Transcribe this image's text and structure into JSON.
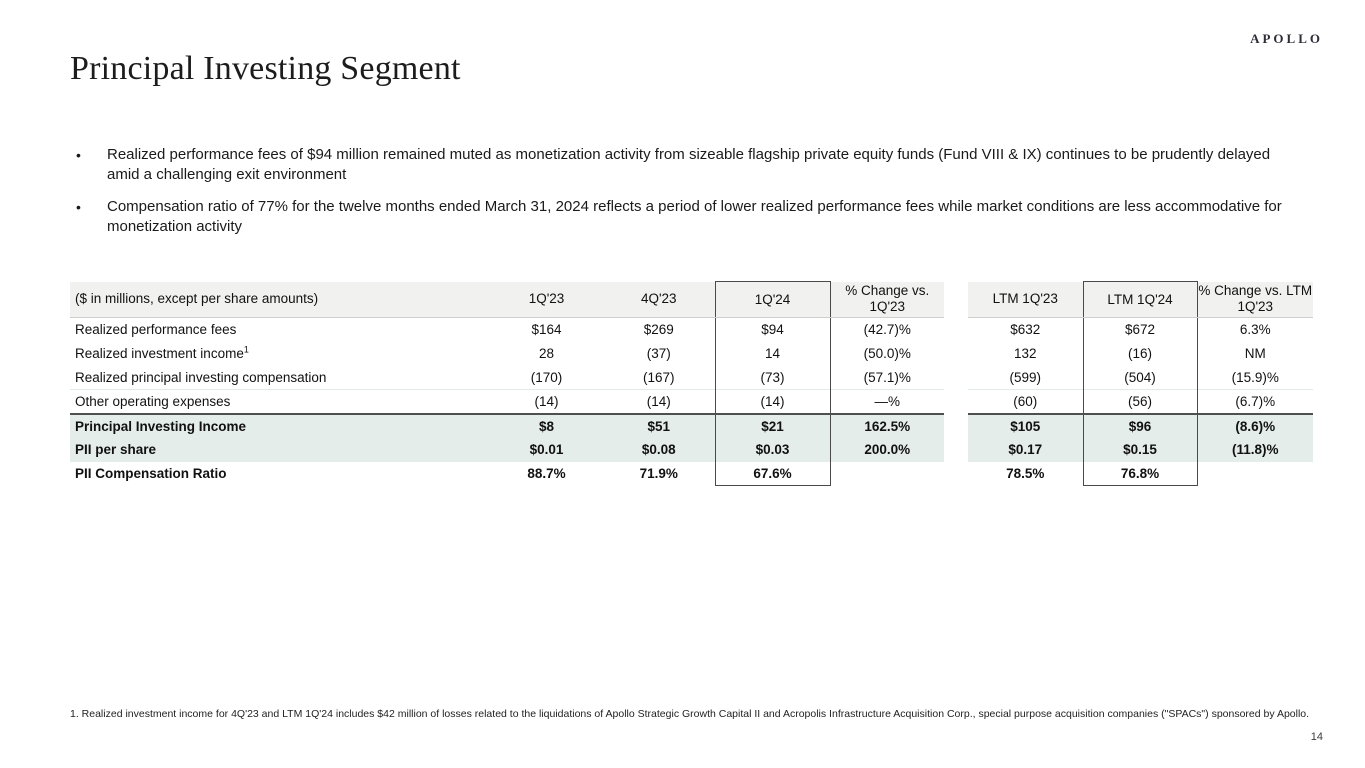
{
  "logo": "APOLLO",
  "title": "Principal Investing Segment",
  "bullets": [
    "Realized performance fees of $94 million remained muted as monetization activity from sizeable flagship private equity funds (Fund VIII & IX) continues to be prudently delayed amid a challenging exit environment",
    "Compensation ratio of 77% for the twelve months ended March 31, 2024 reflects a period of lower realized performance fees while market conditions are less accommodative for monetization activity"
  ],
  "bullet_marker": "•",
  "table": {
    "label_header": "($ in millions, except per share amounts)",
    "col_headers": [
      "1Q'23",
      "4Q'23",
      "1Q'24",
      "% Change vs. 1Q'23",
      "LTM 1Q'23",
      "LTM 1Q'24",
      "% Change vs. LTM 1Q'23"
    ],
    "rows": [
      {
        "label": "Realized performance fees",
        "sup": "",
        "style": "normal",
        "values": [
          "$164",
          "$269",
          "$94",
          "(42.7)%",
          "$632",
          "$672",
          "6.3%"
        ]
      },
      {
        "label": "Realized investment income",
        "sup": "1",
        "style": "normal",
        "values": [
          "28",
          "(37)",
          "14",
          "(50.0)%",
          "132",
          "(16)",
          "NM"
        ]
      },
      {
        "label": "Realized principal investing compensation",
        "sup": "",
        "style": "normal",
        "values": [
          "(170)",
          "(167)",
          "(73)",
          "(57.1)%",
          "(599)",
          "(504)",
          "(15.9)%"
        ]
      },
      {
        "label": "Other operating expenses",
        "sup": "",
        "style": "normal",
        "values": [
          "(14)",
          "(14)",
          "(14)",
          "—%",
          "(60)",
          "(56)",
          "(6.7)%"
        ]
      },
      {
        "label": "Principal Investing Income",
        "sup": "",
        "style": "highlight",
        "values": [
          "$8",
          "$51",
          "$21",
          "162.5%",
          "$105",
          "$96",
          "(8.6)%"
        ]
      },
      {
        "label": "PII per share",
        "sup": "",
        "style": "highlight",
        "values": [
          "$0.01",
          "$0.08",
          "$0.03",
          "200.0%",
          "$0.17",
          "$0.15",
          "(11.8)%"
        ]
      },
      {
        "label": "PII Compensation Ratio",
        "sup": "",
        "style": "bold",
        "values": [
          "88.7%",
          "71.9%",
          "67.6%",
          "",
          "78.5%",
          "76.8%",
          ""
        ]
      }
    ]
  },
  "footnote": "1. Realized investment income for 4Q'23 and LTM 1Q'24 includes $42 million of losses related to the liquidations of Apollo Strategic Growth Capital II and Acropolis Infrastructure Acquisition Corp., special purpose acquisition companies (\"SPACs\") sponsored by Apollo.",
  "page_number": "14",
  "colors": {
    "header_bg": "#f1f1ef",
    "highlight_bg": "#e4edea",
    "box_border": "#4a4a4a",
    "total_rule": "#4f4f4f"
  }
}
